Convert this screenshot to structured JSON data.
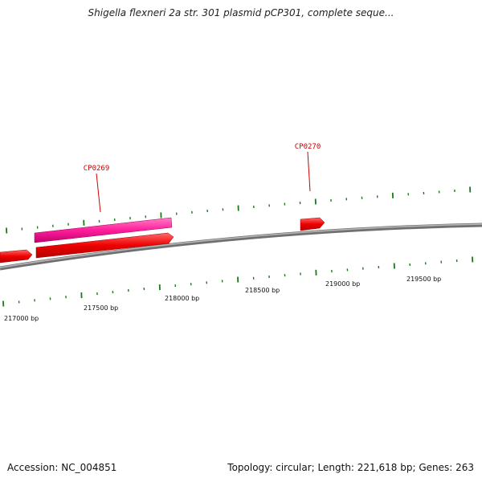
{
  "title": "Shigella flexneri 2a str. 301 plasmid pCP301, complete seque...",
  "footer": {
    "accession": "Accession: NC_004851",
    "summary": "Topology: circular; Length: 221,618 bp; Genes: 263"
  },
  "scale_labels": [
    "217000 bp",
    "217500 bp",
    "218000 bp",
    "218500 bp",
    "219000 bp",
    "219500 bp"
  ],
  "genes": [
    {
      "name": "CP0269",
      "color": "#ff1e9b"
    },
    {
      "name": "CP0270",
      "color": "#ee0000"
    }
  ],
  "colors": {
    "backbone": "#888888",
    "tick": "#1a7a1a",
    "gene_forward": "#ee0000",
    "gene_highlight": "#ff1e9b",
    "label": "#cc0000"
  }
}
